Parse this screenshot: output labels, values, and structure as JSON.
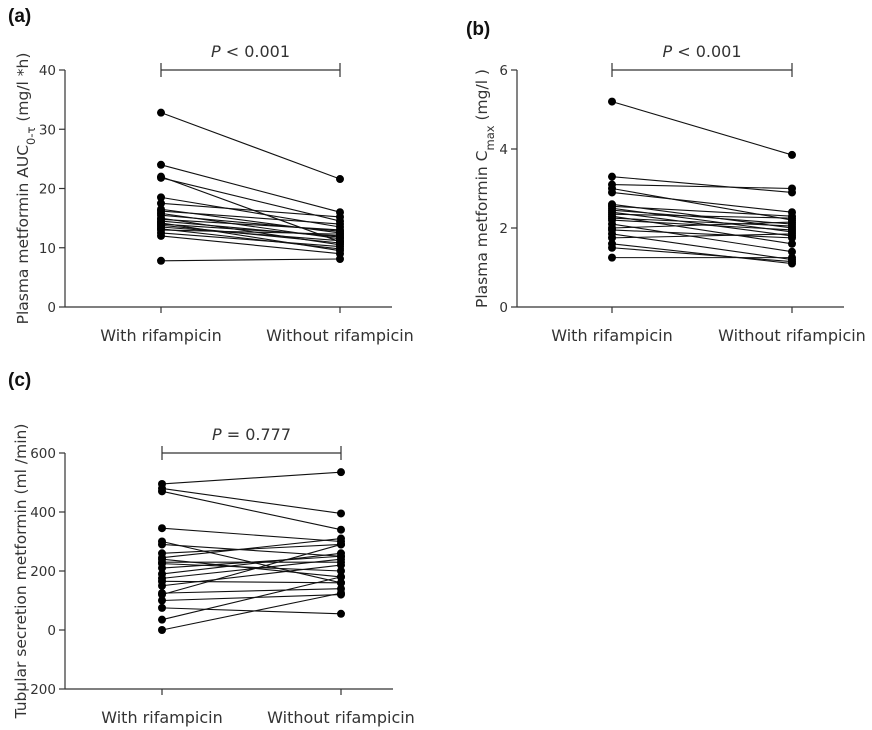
{
  "chart_data": [
    {
      "panel": "(a)",
      "type": "scatter",
      "categories": [
        "With rifampicin",
        "Without rifampicin"
      ],
      "ylabel": {
        "pre": "Plasma metformin AUC",
        "sub": "0-τ",
        "post": " (mg/l *h)"
      },
      "ylim": [
        0,
        40
      ],
      "yticks": [
        0,
        10,
        20,
        30,
        40
      ],
      "p_value": {
        "italic": "P",
        "rest": " < 0.001"
      },
      "pairs": [
        [
          32.8,
          21.6
        ],
        [
          24.0,
          16.0
        ],
        [
          22.0,
          11.0
        ],
        [
          21.8,
          14.5
        ],
        [
          18.5,
          13.5
        ],
        [
          17.5,
          15.2
        ],
        [
          16.5,
          12.5
        ],
        [
          16.2,
          14.0
        ],
        [
          15.8,
          11.5
        ],
        [
          15.5,
          12.8
        ],
        [
          15.0,
          10.5
        ],
        [
          14.8,
          13.0
        ],
        [
          14.5,
          11.8
        ],
        [
          14.2,
          9.5
        ],
        [
          14.0,
          12.0
        ],
        [
          13.8,
          10.8
        ],
        [
          13.5,
          11.2
        ],
        [
          13.2,
          9.8
        ],
        [
          13.0,
          12.3
        ],
        [
          12.5,
          10.2
        ],
        [
          12.0,
          9.0
        ],
        [
          7.8,
          8.1
        ]
      ]
    },
    {
      "panel": "(b)",
      "type": "scatter",
      "categories": [
        "With rifampicin",
        "Without rifampicin"
      ],
      "ylabel": {
        "pre": "Plasma metformin C",
        "sub": "max",
        "post": " (mg/l )"
      },
      "ylim": [
        0,
        6
      ],
      "yticks": [
        0,
        2,
        4,
        6
      ],
      "p_value": {
        "italic": "P",
        "rest": " < 0.001"
      },
      "pairs": [
        [
          5.2,
          3.85
        ],
        [
          3.3,
          2.9
        ],
        [
          3.1,
          3.0
        ],
        [
          3.0,
          2.2
        ],
        [
          2.9,
          2.4
        ],
        [
          2.6,
          2.0
        ],
        [
          2.55,
          2.3
        ],
        [
          2.5,
          1.9
        ],
        [
          2.45,
          2.1
        ],
        [
          2.4,
          1.8
        ],
        [
          2.35,
          2.25
        ],
        [
          2.3,
          1.6
        ],
        [
          2.25,
          2.05
        ],
        [
          2.2,
          1.95
        ],
        [
          2.1,
          1.4
        ],
        [
          2.0,
          2.15
        ],
        [
          1.95,
          1.75
        ],
        [
          1.85,
          1.2
        ],
        [
          1.75,
          1.85
        ],
        [
          1.6,
          1.1
        ],
        [
          1.5,
          1.15
        ],
        [
          1.25,
          1.25
        ]
      ]
    },
    {
      "panel": "(c)",
      "type": "scatter",
      "categories": [
        "With rifampicin",
        "Without rifampicin"
      ],
      "ylabel": {
        "pre": "Tubular secretion metformin (ml /min)",
        "sub": "",
        "post": ""
      },
      "ylim": [
        -200,
        600
      ],
      "yticks": [
        -200,
        0,
        200,
        400,
        600
      ],
      "p_value": {
        "italic": "P",
        "rest": " = 0.777"
      },
      "pairs": [
        [
          495,
          535
        ],
        [
          480,
          395
        ],
        [
          470,
          340
        ],
        [
          345,
          300
        ],
        [
          300,
          160
        ],
        [
          290,
          250
        ],
        [
          260,
          290
        ],
        [
          245,
          310
        ],
        [
          240,
          180
        ],
        [
          230,
          230
        ],
        [
          225,
          200
        ],
        [
          210,
          250
        ],
        [
          190,
          260
        ],
        [
          175,
          240
        ],
        [
          165,
          160
        ],
        [
          150,
          220
        ],
        [
          125,
          140
        ],
        [
          120,
          290
        ],
        [
          100,
          120
        ],
        [
          75,
          55
        ],
        [
          35,
          180
        ],
        [
          0,
          125
        ]
      ]
    }
  ]
}
